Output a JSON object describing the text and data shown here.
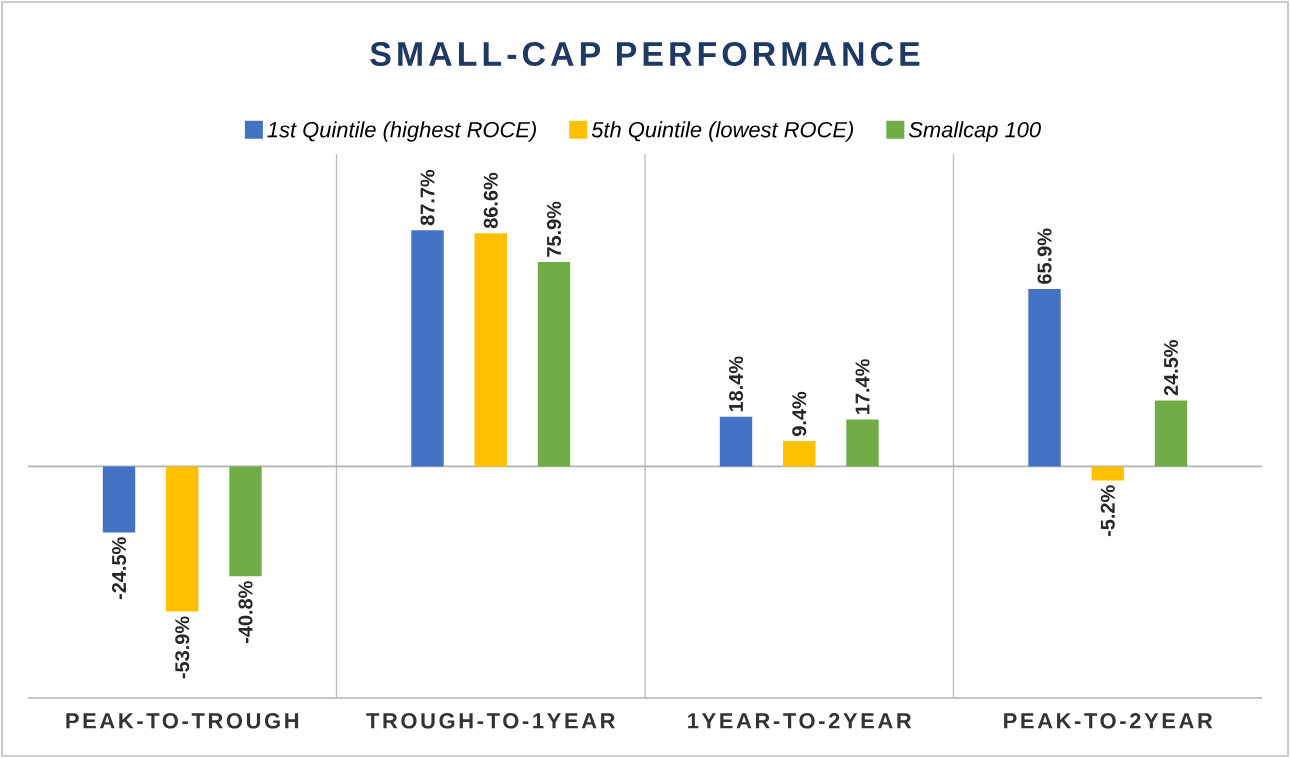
{
  "chart_data": {
    "type": "bar",
    "title": "SMALL-CAP PERFORMANCE",
    "categories": [
      "PEAK-TO-TROUGH",
      "TROUGH-TO-1YEAR",
      "1YEAR-TO-2YEAR",
      "PEAK-TO-2YEAR"
    ],
    "series": [
      {
        "name": "1st Quintile (highest ROCE)",
        "color": "#4472c4",
        "values": [
          -24.5,
          87.7,
          18.4,
          65.9
        ],
        "value_labels": [
          "-24.5%",
          "87.7%",
          "18.4%",
          "65.9%"
        ]
      },
      {
        "name": "5th Quintile  (lowest ROCE)",
        "color": "#ffc000",
        "values": [
          -53.9,
          86.6,
          9.4,
          -5.2
        ],
        "value_labels": [
          "-53.9%",
          "86.6%",
          "9.4%",
          "-5.2%"
        ]
      },
      {
        "name": "Smallcap 100",
        "color": "#70ad47",
        "values": [
          -40.8,
          75.9,
          17.4,
          24.5
        ],
        "value_labels": [
          "-40.8%",
          "75.9%",
          "17.4%",
          "24.5%"
        ]
      }
    ],
    "ylim": [
      -86,
      116
    ],
    "grid": "x",
    "legend": "top",
    "tick_labels": "x"
  }
}
